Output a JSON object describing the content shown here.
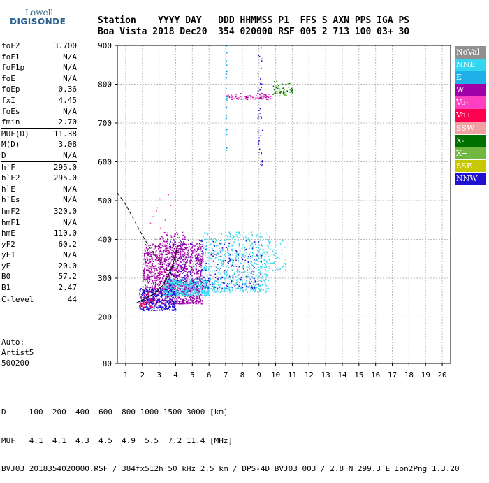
{
  "logo": {
    "line1": "Lowell",
    "line2": "DIGISONDE"
  },
  "header": {
    "row1": "Station    YYYY DAY   DDD HHMMSS P1  FFS S AXN PPS IGA PS",
    "row2": "Boa Vista 2018 Dec20  354 020000 RSF 005 2 713 100 03+ 30"
  },
  "params": [
    [
      {
        "k": "foF2",
        "v": "3.700"
      },
      {
        "k": "foF1",
        "v": "N/A"
      },
      {
        "k": "foF1p",
        "v": "N/A"
      },
      {
        "k": "foE",
        "v": "N/A"
      },
      {
        "k": "foEp",
        "v": "0.36"
      },
      {
        "k": "fxI",
        "v": "4.45"
      },
      {
        "k": "foEs",
        "v": "N/A"
      },
      {
        "k": "fmin",
        "v": "2.70"
      }
    ],
    [
      {
        "k": "MUF(D)",
        "v": "11.38"
      },
      {
        "k": "M(D)",
        "v": "3.08"
      },
      {
        "k": "D",
        "v": "N/A"
      }
    ],
    [
      {
        "k": "h`F",
        "v": "295.0"
      },
      {
        "k": "h`F2",
        "v": "295.0"
      },
      {
        "k": "h`E",
        "v": "N/A"
      },
      {
        "k": "h`Es",
        "v": "N/A"
      }
    ],
    [
      {
        "k": "hmF2",
        "v": "320.0"
      },
      {
        "k": "hmF1",
        "v": "N/A"
      },
      {
        "k": "hmE",
        "v": "110.0"
      },
      {
        "k": "yF2",
        "v": "60.2"
      },
      {
        "k": "yF1",
        "v": "N/A"
      },
      {
        "k": "yE",
        "v": "20.0"
      },
      {
        "k": "B0",
        "v": "57.2"
      },
      {
        "k": "B1",
        "v": "2.47"
      }
    ],
    [
      {
        "k": "C-level",
        "v": "44"
      }
    ]
  ],
  "autoscale": {
    "line1": "Auto:",
    "line2": "Artist5",
    "line3": "500200"
  },
  "legend": [
    {
      "label": "NoVal",
      "color": "#909090"
    },
    {
      "label": "NNE",
      "color": "#33d6f0"
    },
    {
      "label": "E",
      "color": "#20b0e8"
    },
    {
      "label": "W",
      "color": "#a000a8"
    },
    {
      "label": "Vo-",
      "color": "#ff40c0"
    },
    {
      "label": "Vo+",
      "color": "#ff0050"
    },
    {
      "label": "SSW",
      "color": "#f0a0a0"
    },
    {
      "label": "X-",
      "color": "#007000"
    },
    {
      "label": "X+",
      "color": "#70b840"
    },
    {
      "label": "SSE",
      "color": "#c8c800"
    },
    {
      "label": "NNW",
      "color": "#2010d0"
    }
  ],
  "footer": {
    "row1": "D     100  200  400  600  800 1000 1500 3000 [km]",
    "row2": "MUF   4.1  4.1  4.3  4.5  4.9  5.5  7.2 11.4 [MHz]",
    "row3": "BVJ03_2018354020000.RSF / 384fx512h 50 kHz 2.5 km / DPS-4D BVJ03 003 / 2.8 N 299.3 E Ion2Png 1.3.20"
  },
  "chart_data": {
    "type": "scatter",
    "xlim": [
      0.5,
      20.5
    ],
    "ylim": [
      80,
      900
    ],
    "xticks": [
      1,
      2,
      3,
      4,
      5,
      6,
      7,
      8,
      9,
      10,
      11,
      12,
      13,
      14,
      15,
      16,
      17,
      18,
      19,
      20
    ],
    "yticks": [
      80,
      200,
      300,
      400,
      500,
      600,
      700,
      800,
      900
    ],
    "grid": true,
    "clusters": [
      {
        "name": "W",
        "color": "#a000a8",
        "x": [
          2.0,
          5.6
        ],
        "y": [
          235,
          390
        ],
        "n": 1300
      },
      {
        "name": "W",
        "color": "#a000a8",
        "x": [
          3.0,
          4.6
        ],
        "y": [
          260,
          420
        ],
        "n": 250
      },
      {
        "name": "NNE",
        "color": "#33d6f0",
        "x": [
          3.2,
          6.0
        ],
        "y": [
          255,
          300
        ],
        "n": 500
      },
      {
        "name": "NNE",
        "color": "#33d6f0",
        "x": [
          5.6,
          9.6
        ],
        "y": [
          265,
          420
        ],
        "n": 650
      },
      {
        "name": "NNE",
        "color": "#33d6f0",
        "x": [
          9.5,
          10.6
        ],
        "y": [
          320,
          400
        ],
        "n": 40
      },
      {
        "name": "NNW",
        "color": "#2010d0",
        "x": [
          1.8,
          4.0
        ],
        "y": [
          218,
          275
        ],
        "n": 330
      },
      {
        "name": "NNW",
        "color": "#2010d0",
        "x": [
          3.5,
          9.2
        ],
        "y": [
          275,
          400
        ],
        "n": 280
      },
      {
        "name": "NNW",
        "color": "#2010d0",
        "x": [
          8.9,
          9.2
        ],
        "y": [
          590,
          900
        ],
        "n": 40
      },
      {
        "name": "Vo+",
        "color": "#ff0050",
        "x": [
          1.8,
          2.6
        ],
        "y": [
          225,
          270
        ],
        "n": 40
      },
      {
        "name": "Vo-",
        "color": "#ff40c0",
        "x": [
          2.4,
          4.0
        ],
        "y": [
          300,
          560
        ],
        "n": 30
      },
      {
        "name": "Vo-",
        "color": "#ff40c0",
        "x": [
          7.0,
          9.8
        ],
        "y": [
          763,
          775
        ],
        "n": 45
      },
      {
        "name": "W",
        "color": "#a000a8",
        "x": [
          7.0,
          9.6
        ],
        "y": [
          762,
          778
        ],
        "n": 40
      },
      {
        "name": "X-",
        "color": "#007000",
        "x": [
          9.8,
          11.0
        ],
        "y": [
          775,
          810
        ],
        "n": 40
      },
      {
        "name": "X+",
        "color": "#70b840",
        "x": [
          9.8,
          11.0
        ],
        "y": [
          770,
          805
        ],
        "n": 20
      },
      {
        "name": "E",
        "color": "#20b0e8",
        "x": [
          7.0,
          7.05
        ],
        "y": [
          630,
          900
        ],
        "n": 30
      }
    ],
    "curve": [
      [
        0.5,
        520
      ],
      [
        1,
        490
      ],
      [
        1.5,
        450
      ],
      [
        2,
        410
      ],
      [
        2.5,
        375
      ],
      [
        3,
        345
      ],
      [
        3.5,
        320
      ],
      [
        4,
        300
      ]
    ],
    "curve2": [
      [
        1.6,
        235
      ],
      [
        2.2,
        248
      ],
      [
        2.8,
        262
      ],
      [
        3.3,
        285
      ],
      [
        3.8,
        330
      ],
      [
        4.1,
        380
      ]
    ]
  }
}
